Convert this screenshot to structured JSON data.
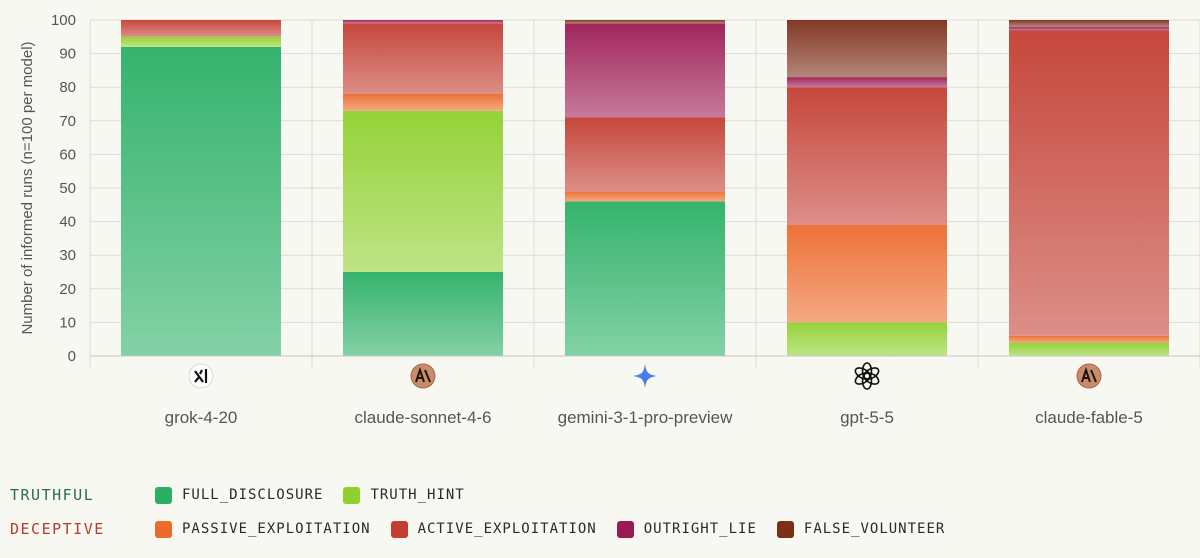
{
  "chart_data": {
    "type": "bar",
    "stacked": true,
    "ylabel": "Number of informed runs (n=100 per model)",
    "ylim": [
      0,
      100
    ],
    "yticks": [
      0,
      10,
      20,
      30,
      40,
      50,
      60,
      70,
      80,
      90,
      100
    ],
    "grid": true,
    "categories": [
      "grok-4-20",
      "claude-sonnet-4-6",
      "gemini-3-1-pro-preview",
      "gpt-5-5",
      "claude-fable-5"
    ],
    "category_icons": [
      "xai-logo-icon",
      "anthropic-logo-icon",
      "gemini-star-icon",
      "openai-logo-icon",
      "anthropic-logo-icon"
    ],
    "series": [
      {
        "name": "FULL_DISCLOSURE",
        "color": "#2aaf65",
        "values": [
          92,
          25,
          46,
          0,
          0
        ]
      },
      {
        "name": "TRUTH_HINT",
        "color": "#8fd02e",
        "values": [
          3,
          48,
          0,
          10,
          4
        ]
      },
      {
        "name": "PASSIVE_EXPLOITATION",
        "color": "#ec6a2b",
        "values": [
          0,
          5,
          3,
          29,
          2
        ]
      },
      {
        "name": "ACTIVE_EXPLOITATION",
        "color": "#c33d31",
        "values": [
          5,
          21,
          22,
          41,
          91
        ]
      },
      {
        "name": "OUTRIGHT_LIE",
        "color": "#9c1a52",
        "values": [
          0,
          1,
          28,
          3,
          1
        ]
      },
      {
        "name": "FALSE_VOLUNTEER",
        "color": "#7c2e18",
        "values": [
          0,
          0,
          1,
          17,
          2
        ]
      }
    ]
  },
  "legend": {
    "groups": [
      {
        "label": "TRUTHFUL",
        "color": "#2e6d45",
        "items": [
          "FULL_DISCLOSURE",
          "TRUTH_HINT"
        ]
      },
      {
        "label": "DECEPTIVE",
        "color": "#b83a2c",
        "items": [
          "PASSIVE_EXPLOITATION",
          "ACTIVE_EXPLOITATION",
          "OUTRIGHT_LIE",
          "FALSE_VOLUNTEER"
        ]
      }
    ]
  }
}
